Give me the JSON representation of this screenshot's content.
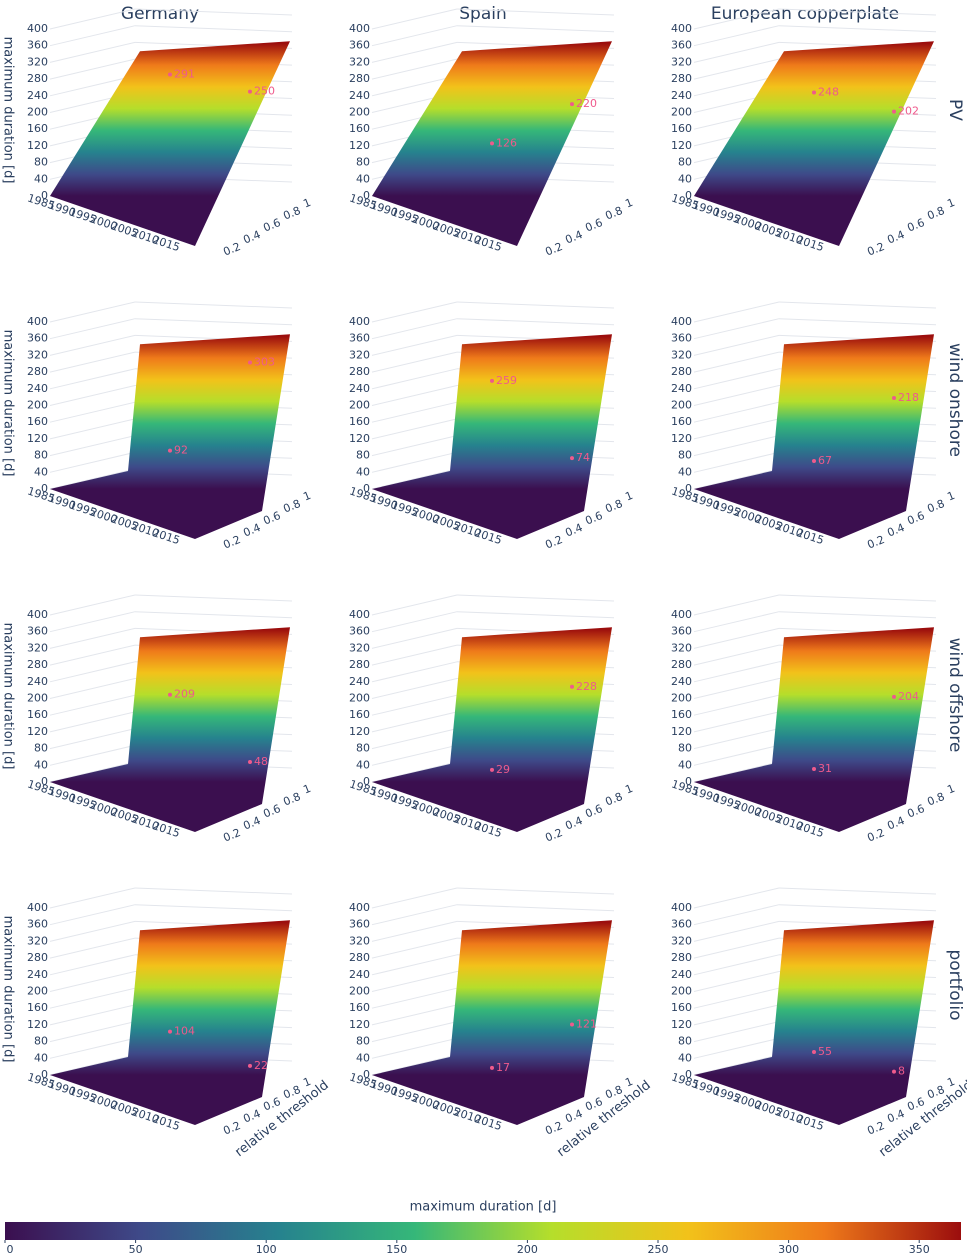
{
  "column_titles": [
    "Germany",
    "Spain",
    "European copperplate"
  ],
  "row_titles": [
    "PV",
    "wind onshore",
    "wind offshore",
    "portfolio"
  ],
  "chart_data": [
    {
      "type": "surface3d",
      "zlabel": "maximum duration [d]",
      "zlim": [
        0,
        400
      ],
      "zticks": [
        0,
        40,
        80,
        120,
        160,
        200,
        240,
        280,
        320,
        360,
        400
      ],
      "xlim": [
        1983,
        2019
      ],
      "xticks": [
        1985,
        1990,
        1995,
        2000,
        2005,
        2010,
        2015
      ],
      "ylim": [
        0,
        1
      ],
      "yticks": [
        0.2,
        0.4,
        0.6,
        0.8,
        1
      ],
      "annotations": [
        291,
        250
      ]
    },
    {
      "type": "surface3d",
      "zlim": [
        0,
        400
      ],
      "zticks": [
        0,
        40,
        80,
        120,
        160,
        200,
        240,
        280,
        320,
        360,
        400
      ],
      "xlim": [
        1983,
        2019
      ],
      "xticks": [
        1985,
        1990,
        1995,
        2000,
        2005,
        2010,
        2015
      ],
      "ylim": [
        0,
        1
      ],
      "yticks": [
        0.2,
        0.4,
        0.6,
        0.8,
        1
      ],
      "annotations": [
        126,
        220
      ]
    },
    {
      "type": "surface3d",
      "zlim": [
        0,
        400
      ],
      "zticks": [
        0,
        40,
        80,
        120,
        160,
        200,
        240,
        280,
        320,
        360,
        400
      ],
      "xlim": [
        1983,
        2019
      ],
      "xticks": [
        1985,
        1990,
        1995,
        2000,
        2005,
        2010,
        2015
      ],
      "ylim": [
        0,
        1
      ],
      "yticks": [
        0.2,
        0.4,
        0.6,
        0.8,
        1
      ],
      "annotations": [
        248,
        202
      ]
    },
    {
      "type": "surface3d",
      "zlabel": "maximum duration [d]",
      "zlim": [
        0,
        400
      ],
      "zticks": [
        0,
        40,
        80,
        120,
        160,
        200,
        240,
        280,
        320,
        360,
        400
      ],
      "xlim": [
        1983,
        2019
      ],
      "xticks": [
        1985,
        1990,
        1995,
        2000,
        2005,
        2010,
        2015
      ],
      "ylim": [
        0,
        1
      ],
      "yticks": [
        0.2,
        0.4,
        0.6,
        0.8,
        1
      ],
      "annotations": [
        92,
        303
      ]
    },
    {
      "type": "surface3d",
      "zlim": [
        0,
        400
      ],
      "zticks": [
        0,
        40,
        80,
        120,
        160,
        200,
        240,
        280,
        320,
        360,
        400
      ],
      "xlim": [
        1983,
        2019
      ],
      "xticks": [
        1985,
        1990,
        1995,
        2000,
        2005,
        2010,
        2015
      ],
      "ylim": [
        0,
        1
      ],
      "yticks": [
        0.2,
        0.4,
        0.6,
        0.8,
        1
      ],
      "annotations": [
        259,
        74
      ]
    },
    {
      "type": "surface3d",
      "zlim": [
        0,
        400
      ],
      "zticks": [
        0,
        40,
        80,
        120,
        160,
        200,
        240,
        280,
        320,
        360,
        400
      ],
      "xlim": [
        1983,
        2019
      ],
      "xticks": [
        1985,
        1990,
        1995,
        2000,
        2005,
        2010,
        2015
      ],
      "ylim": [
        0,
        1
      ],
      "yticks": [
        0.2,
        0.4,
        0.6,
        0.8,
        1
      ],
      "annotations": [
        67,
        218
      ]
    },
    {
      "type": "surface3d",
      "zlabel": "maximum duration [d]",
      "zlim": [
        0,
        400
      ],
      "zticks": [
        0,
        40,
        80,
        120,
        160,
        200,
        240,
        280,
        320,
        360,
        400
      ],
      "xlim": [
        1983,
        2019
      ],
      "xticks": [
        1985,
        1990,
        1995,
        2000,
        2005,
        2010,
        2015
      ],
      "ylim": [
        0,
        1
      ],
      "yticks": [
        0.2,
        0.4,
        0.6,
        0.8,
        1
      ],
      "annotations": [
        209,
        48
      ]
    },
    {
      "type": "surface3d",
      "zlim": [
        0,
        400
      ],
      "zticks": [
        0,
        40,
        80,
        120,
        160,
        200,
        240,
        280,
        320,
        360,
        400
      ],
      "xlim": [
        1983,
        2019
      ],
      "xticks": [
        1985,
        1990,
        1995,
        2000,
        2005,
        2010,
        2015
      ],
      "ylim": [
        0,
        1
      ],
      "yticks": [
        0.2,
        0.4,
        0.6,
        0.8,
        1
      ],
      "annotations": [
        29,
        228
      ]
    },
    {
      "type": "surface3d",
      "zlim": [
        0,
        400
      ],
      "zticks": [
        0,
        40,
        80,
        120,
        160,
        200,
        240,
        280,
        320,
        360,
        400
      ],
      "xlim": [
        1983,
        2019
      ],
      "xticks": [
        1985,
        1990,
        1995,
        2000,
        2005,
        2010,
        2015
      ],
      "ylim": [
        0,
        1
      ],
      "yticks": [
        0.2,
        0.4,
        0.6,
        0.8,
        1
      ],
      "annotations": [
        31,
        204
      ]
    },
    {
      "type": "surface3d",
      "zlabel": "maximum duration [d]",
      "ylabel": "relative threshold",
      "zlim": [
        0,
        400
      ],
      "zticks": [
        0,
        40,
        80,
        120,
        160,
        200,
        240,
        280,
        320,
        360,
        400
      ],
      "xlim": [
        1983,
        2019
      ],
      "xticks": [
        1985,
        1990,
        1995,
        2000,
        2005,
        2010,
        2015
      ],
      "ylim": [
        0,
        1
      ],
      "yticks": [
        0.2,
        0.4,
        0.6,
        0.8,
        1
      ],
      "annotations": [
        104,
        22
      ]
    },
    {
      "type": "surface3d",
      "ylabel": "relative threshold",
      "zlim": [
        0,
        400
      ],
      "zticks": [
        0,
        40,
        80,
        120,
        160,
        200,
        240,
        280,
        320,
        360,
        400
      ],
      "xlim": [
        1983,
        2019
      ],
      "xticks": [
        1985,
        1990,
        1995,
        2000,
        2005,
        2010,
        2015
      ],
      "ylim": [
        0,
        1
      ],
      "yticks": [
        0.2,
        0.4,
        0.6,
        0.8,
        1
      ],
      "annotations": [
        17,
        121
      ]
    },
    {
      "type": "surface3d",
      "ylabel": "relative threshold",
      "zlim": [
        0,
        400
      ],
      "zticks": [
        0,
        40,
        80,
        120,
        160,
        200,
        240,
        280,
        320,
        360,
        400
      ],
      "xlim": [
        1983,
        2019
      ],
      "xticks": [
        1985,
        1990,
        1995,
        2000,
        2005,
        2010,
        2015
      ],
      "ylim": [
        0,
        1
      ],
      "yticks": [
        0.2,
        0.4,
        0.6,
        0.8,
        1
      ],
      "annotations": [
        55,
        8
      ]
    }
  ],
  "colorbar": {
    "title": "maximum duration [d]",
    "lim": [
      0,
      366
    ],
    "ticks": [
      0,
      50,
      100,
      150,
      200,
      250,
      300,
      350
    ],
    "colorscale": [
      "#3b0f4f",
      "#3e4a89",
      "#26828e",
      "#35b779",
      "#b5de2b",
      "#f2c21a",
      "#ef7a1a",
      "#9b0d0d"
    ]
  }
}
